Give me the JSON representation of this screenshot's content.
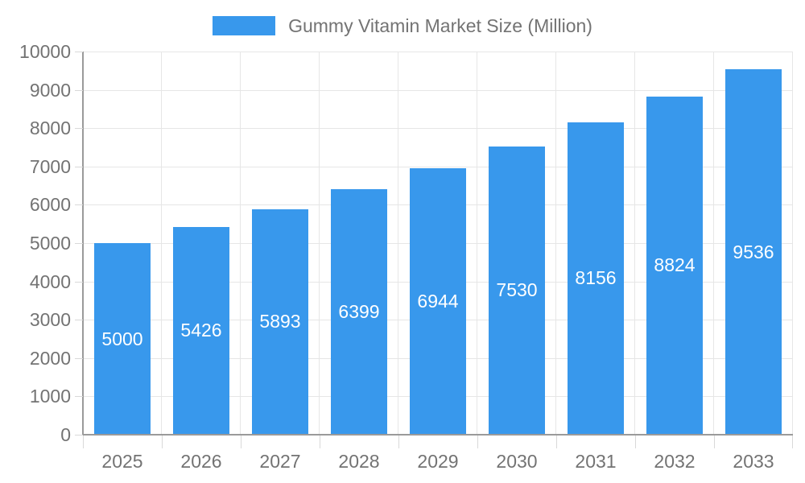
{
  "legend": {
    "label": "Gummy Vitamin Market Size (Million)"
  },
  "chart_data": {
    "type": "bar",
    "title": "Gummy Vitamin Market Size (Million)",
    "categories": [
      "2025",
      "2026",
      "2027",
      "2028",
      "2029",
      "2030",
      "2031",
      "2032",
      "2033"
    ],
    "series": [
      {
        "name": "Gummy Vitamin Market Size (Million)",
        "values": [
          5000,
          5426,
          5893,
          6399,
          6944,
          7530,
          8156,
          8824,
          9536
        ]
      }
    ],
    "xlabel": "",
    "ylabel": "",
    "ylim": [
      0,
      10000
    ],
    "ytick_step": 1000,
    "grid": true,
    "legend_position": "top-center",
    "value_labels": "centered-inside-bars"
  },
  "colors": {
    "bar": "#3898ec",
    "axis": "#9a9a9a",
    "grid": "#e6e6e6",
    "tick": "#d9d9d9",
    "text": "#737373",
    "bar_label": "#ffffff",
    "background": "#ffffff"
  }
}
